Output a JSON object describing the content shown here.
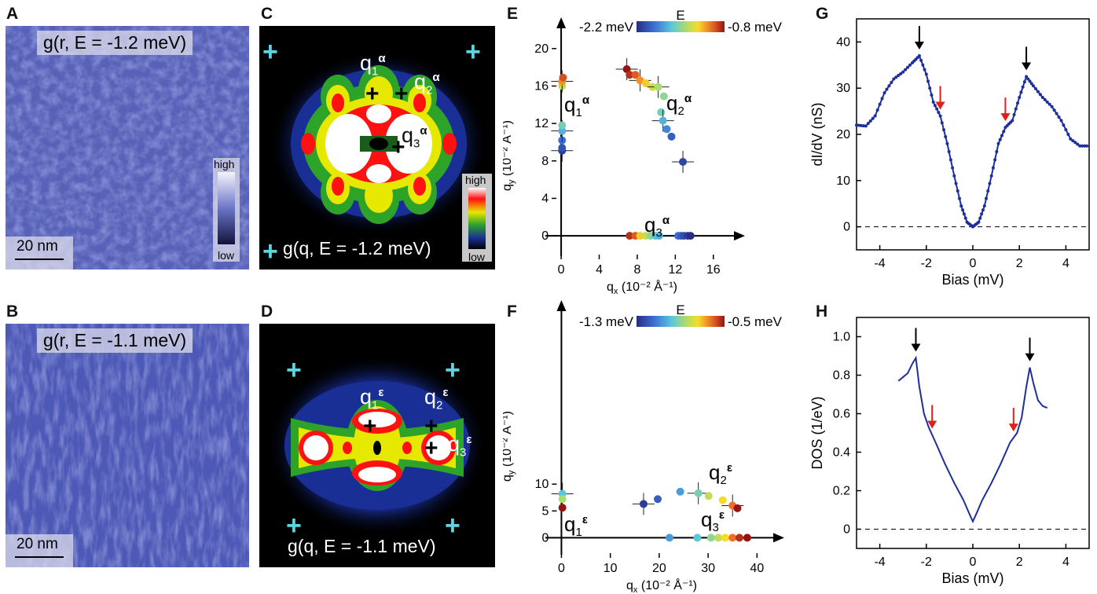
{
  "panels": {
    "A": {
      "letter": "A",
      "title": "g(r, E = -1.2 meV)",
      "cb_high": "high",
      "cb_low": "low",
      "scale": "20 nm"
    },
    "B": {
      "letter": "B",
      "title": "g(r, E = -1.1 meV)",
      "scale": "20 nm"
    },
    "C": {
      "letter": "C",
      "title": "g(q, E = -1.2 meV)",
      "cb_high": "high",
      "cb_low": "low",
      "q1": "q",
      "q1_sub": "1",
      "q1_sup": "α",
      "q2": "q",
      "q2_sub": "2",
      "q2_sup": "α",
      "q3": "q",
      "q3_sub": "3",
      "q3_sup": "α"
    },
    "D": {
      "letter": "D",
      "title": "g(q, E = -1.1 meV)",
      "q1": "q",
      "q1_sub": "1",
      "q1_sup": "ε",
      "q2": "q",
      "q2_sub": "2",
      "q2_sup": "ε",
      "q3": "q",
      "q3_sub": "3",
      "q3_sup": "ε"
    },
    "E": {
      "letter": "E"
    },
    "F": {
      "letter": "F"
    },
    "G": {
      "letter": "G"
    },
    "H": {
      "letter": "H"
    }
  },
  "chart_data": [
    {
      "id": "E",
      "type": "scatter",
      "xlabel": "qx (10-2 Å-1)",
      "ylabel": "qy (10-2 Å-1)",
      "xlim": [
        -1,
        18
      ],
      "ylim": [
        -1.5,
        22
      ],
      "xticks": [
        0,
        4,
        8,
        12,
        16
      ],
      "yticks": [
        0,
        4,
        8,
        12,
        16,
        20
      ],
      "colorbar": {
        "title": "E",
        "min_label": "-2.2 meV",
        "max_label": "-0.8 meV"
      },
      "annotations": [
        "q1α",
        "q2α",
        "q3α"
      ],
      "series": [
        {
          "name": "q1α",
          "points": [
            [
              0.1,
              9.1
            ],
            [
              0.1,
              9.4
            ],
            [
              0.1,
              10.2
            ],
            [
              0.1,
              11.2
            ],
            [
              0.1,
              11.8
            ],
            [
              0.1,
              16.0
            ],
            [
              0.1,
              16.5
            ],
            [
              0.2,
              16.9
            ]
          ],
          "fracs": [
            0.05,
            0.12,
            0.2,
            0.35,
            0.45,
            0.6,
            0.8,
            0.9
          ]
        },
        {
          "name": "q2α",
          "points": [
            [
              6.9,
              17.8
            ],
            [
              7.2,
              17.2
            ],
            [
              7.8,
              17.2
            ],
            [
              8.3,
              16.6
            ],
            [
              8.9,
              16.3
            ],
            [
              9.6,
              15.9
            ],
            [
              10.2,
              15.9
            ],
            [
              10.8,
              14.9
            ],
            [
              10.5,
              13.2
            ],
            [
              10.7,
              12.3
            ],
            [
              11.1,
              11.4
            ],
            [
              11.6,
              10.6
            ],
            [
              12.8,
              7.9
            ]
          ],
          "fracs": [
            1.0,
            0.95,
            0.88,
            0.8,
            0.72,
            0.62,
            0.55,
            0.5,
            0.45,
            0.35,
            0.25,
            0.15,
            0.08
          ]
        },
        {
          "name": "q3α",
          "points": [
            [
              7.2,
              0
            ],
            [
              7.8,
              0
            ],
            [
              8.3,
              0
            ],
            [
              8.9,
              0
            ],
            [
              9.4,
              0
            ],
            [
              9.9,
              0
            ],
            [
              10.3,
              0
            ],
            [
              12.3,
              0
            ],
            [
              12.6,
              0
            ],
            [
              12.9,
              0
            ],
            [
              13.3,
              0
            ],
            [
              13.6,
              0
            ]
          ],
          "fracs": [
            0.95,
            0.88,
            0.72,
            0.6,
            0.5,
            0.4,
            0.35,
            0.2,
            0.15,
            0.1,
            0.05,
            0.0
          ]
        }
      ]
    },
    {
      "id": "F",
      "type": "scatter",
      "xlabel": "qx (10-2 Å-1)",
      "ylabel": "qy (10-2 Å-1)",
      "xlim": [
        -2,
        43
      ],
      "ylim": [
        -2,
        42
      ],
      "xticks": [
        0,
        10,
        20,
        30,
        40
      ],
      "yticks": [
        0,
        5,
        10
      ],
      "colorbar": {
        "title": "E",
        "min_label": "-1.3 meV",
        "max_label": "-0.5 meV"
      },
      "annotations": [
        "q1ε",
        "q2ε",
        "q3ε"
      ],
      "series": [
        {
          "name": "q1ε",
          "points": [
            [
              0.2,
              8.2
            ],
            [
              0.2,
              7.2
            ],
            [
              0.2,
              5.6
            ]
          ],
          "fracs": [
            0.4,
            0.55,
            1.0
          ]
        },
        {
          "name": "q2ε",
          "points": [
            [
              16.8,
              6.3
            ],
            [
              19.7,
              7.2
            ],
            [
              24.3,
              8.6
            ],
            [
              28.0,
              8.3
            ],
            [
              30.1,
              7.8
            ],
            [
              33.0,
              7.0
            ],
            [
              35.0,
              6.0
            ],
            [
              36.0,
              5.5
            ]
          ],
          "fracs": [
            0.05,
            0.15,
            0.3,
            0.45,
            0.6,
            0.7,
            0.85,
            1.0
          ]
        },
        {
          "name": "q3ε",
          "points": [
            [
              22.1,
              0
            ],
            [
              27.8,
              0
            ],
            [
              30.6,
              0
            ],
            [
              32.1,
              0
            ],
            [
              33.5,
              0
            ],
            [
              35.0,
              0
            ],
            [
              36.4,
              0
            ],
            [
              38.0,
              0
            ]
          ],
          "fracs": [
            0.3,
            0.4,
            0.5,
            0.6,
            0.7,
            0.85,
            0.95,
            1.0
          ]
        }
      ]
    },
    {
      "id": "G",
      "type": "line",
      "xlabel": "Bias (mV)",
      "ylabel": "dI/dV (nS)",
      "xlim": [
        -5,
        5
      ],
      "ylim": [
        -5,
        45
      ],
      "xticks": [
        -4,
        -2,
        0,
        2,
        4
      ],
      "yticks": [
        0,
        10,
        20,
        30,
        40
      ],
      "series": [
        {
          "name": "",
          "x": [
            -5,
            -4.6,
            -4.2,
            -3.8,
            -3.4,
            -3.0,
            -2.6,
            -2.3,
            -2.0,
            -1.7,
            -1.4,
            -1.1,
            -0.8,
            -0.5,
            -0.25,
            0,
            0.25,
            0.5,
            0.8,
            1.1,
            1.4,
            1.7,
            2.0,
            2.3,
            2.6,
            3.0,
            3.4,
            3.8,
            4.2,
            4.6,
            5
          ],
          "y": [
            22,
            21.8,
            24,
            29,
            32,
            33.5,
            35.5,
            37,
            33,
            27,
            24,
            18,
            11,
            4.5,
            1,
            0,
            1,
            4.5,
            11,
            18,
            21.5,
            23,
            28,
            32.5,
            30.5,
            28,
            26,
            23,
            19,
            17.5,
            17.5
          ]
        }
      ],
      "arrows_black": [
        -2.3,
        2.3
      ],
      "arrows_red": [
        -1.4,
        1.4
      ]
    },
    {
      "id": "H",
      "type": "line",
      "xlabel": "Bias (mV)",
      "ylabel": "DOS (1/eV)",
      "xlim": [
        -5,
        5
      ],
      "ylim": [
        -0.1,
        1.1
      ],
      "xticks": [
        -4,
        -2,
        0,
        2,
        4
      ],
      "yticks": [
        0,
        0.2,
        0.4,
        0.6,
        0.8,
        1.0
      ],
      "series": [
        {
          "name": "",
          "x": [
            -3.2,
            -3.0,
            -2.8,
            -2.6,
            -2.45,
            -2.3,
            -2.1,
            -1.9,
            -1.6,
            -1.2,
            -0.8,
            -0.4,
            -0.15,
            0,
            0.15,
            0.4,
            0.8,
            1.2,
            1.6,
            1.9,
            2.1,
            2.3,
            2.45,
            2.6,
            2.8,
            3.0,
            3.2
          ],
          "y": [
            0.77,
            0.79,
            0.81,
            0.86,
            0.89,
            0.74,
            0.6,
            0.53,
            0.45,
            0.34,
            0.24,
            0.15,
            0.08,
            0.04,
            0.08,
            0.15,
            0.24,
            0.34,
            0.45,
            0.5,
            0.58,
            0.74,
            0.84,
            0.76,
            0.67,
            0.64,
            0.63
          ]
        }
      ],
      "arrows_black": [
        -2.45,
        2.45
      ],
      "arrows_red": [
        -1.75,
        1.75
      ]
    }
  ]
}
